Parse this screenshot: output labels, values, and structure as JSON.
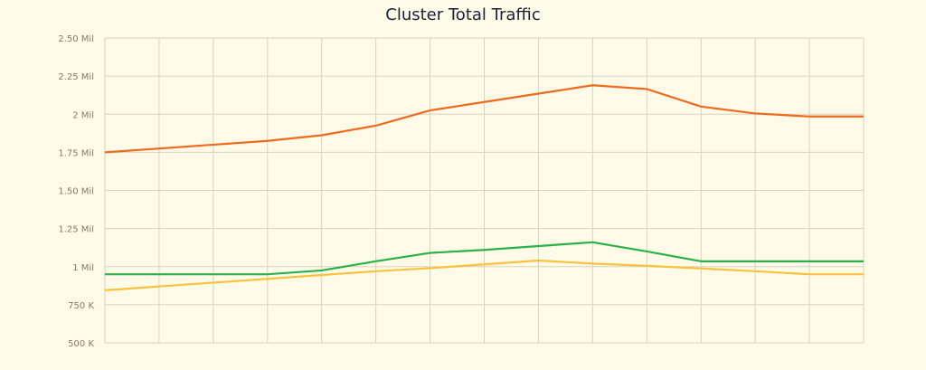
{
  "chart_data": {
    "type": "line",
    "title": "Cluster Total Traffic",
    "xlabel": "",
    "ylabel": "",
    "x": [
      0,
      1,
      2,
      3,
      4,
      5,
      6,
      7,
      8,
      9,
      10,
      11,
      12,
      13,
      14
    ],
    "ylim": [
      500000,
      2500000
    ],
    "yticks": [
      {
        "value": 500000,
        "label": "500 K"
      },
      {
        "value": 750000,
        "label": "750 K"
      },
      {
        "value": 1000000,
        "label": "1 Mil"
      },
      {
        "value": 1250000,
        "label": "1.25 Mil"
      },
      {
        "value": 1500000,
        "label": "1.50 Mil"
      },
      {
        "value": 1750000,
        "label": "1.75 Mil"
      },
      {
        "value": 2000000,
        "label": "2 Mil"
      },
      {
        "value": 2250000,
        "label": "2.25 Mil"
      },
      {
        "value": 2500000,
        "label": "2.50 Mil"
      }
    ],
    "grid": true,
    "series": [
      {
        "color": "#ee6a1e",
        "values": [
          1750000,
          1775000,
          1800000,
          1825000,
          1862000,
          1925000,
          2025000,
          2080000,
          2135000,
          2190000,
          2165000,
          2050000,
          2005000,
          1985000,
          1985000
        ]
      },
      {
        "color": "#2cb04a",
        "values": [
          950000,
          950000,
          950000,
          950000,
          975000,
          1035000,
          1090000,
          1110000,
          1135000,
          1160000,
          1100000,
          1035000,
          1035000,
          1035000,
          1035000
        ]
      },
      {
        "color": "#f8c23c",
        "values": [
          845000,
          870000,
          895000,
          920000,
          945000,
          970000,
          990000,
          1015000,
          1040000,
          1020000,
          1005000,
          988000,
          970000,
          950000,
          950000
        ]
      }
    ]
  }
}
